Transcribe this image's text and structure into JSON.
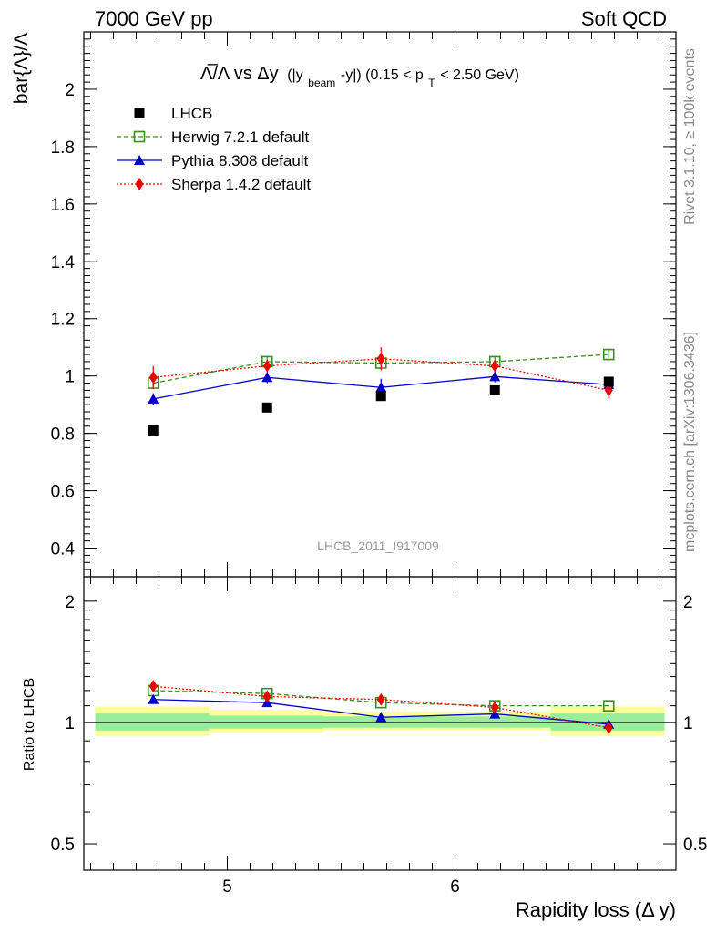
{
  "header": {
    "left": "7000 GeV pp",
    "right": "Soft QCD"
  },
  "side": {
    "top": "Rivet 3.1.10, ≥ 100k events",
    "bottom": "mcplots.cern.ch [arXiv:1306.3436]"
  },
  "chart_data": [
    {
      "type": "line",
      "title_main": "Λ̅/Λ vs Δy",
      "title_detail": "(|y",
      "title_sub1": "beam",
      "title_detail2": "-y|) (0.15 < p",
      "title_sub2": "T",
      "title_detail3": " < 2.50 GeV)",
      "ylabel": "bar{Λ}/Λ",
      "watermark": "LHCB_2011_I917009",
      "x": [
        4.675,
        5.175,
        5.675,
        6.175,
        6.675
      ],
      "xlim": [
        4.37,
        6.97
      ],
      "ylim": [
        0.3,
        2.2
      ],
      "yticks": [
        "0.4",
        "0.6",
        "0.8",
        "1",
        "1.2",
        "1.4",
        "1.6",
        "1.8",
        "2"
      ],
      "legend": [
        {
          "label": "LHCB",
          "color": "#000000",
          "marker": "square",
          "style": "none"
        },
        {
          "label": "Herwig 7.2.1 default",
          "color": "#3a8f1c",
          "marker": "open-square",
          "style": "dashed"
        },
        {
          "label": "Pythia 8.308 default",
          "color": "#0000cc",
          "marker": "triangle",
          "style": "solid"
        },
        {
          "label": "Sherpa 1.4.2 default",
          "color": "#ee0000",
          "marker": "diamond",
          "style": "dotted"
        }
      ],
      "series": [
        {
          "name": "LHCB",
          "values": [
            0.81,
            0.89,
            0.93,
            0.95,
            0.98
          ],
          "errors": [
            0.01,
            0.01,
            0.01,
            0.01,
            0.01
          ]
        },
        {
          "name": "Herwig 7.2.1 default",
          "values": [
            0.975,
            1.05,
            1.045,
            1.05,
            1.075
          ],
          "errors": [
            0.02,
            0.02,
            0.02,
            0.02,
            0.02
          ]
        },
        {
          "name": "Pythia 8.308 default",
          "values": [
            0.92,
            0.995,
            0.96,
            0.998,
            0.97
          ],
          "errors": [
            0.02,
            0.02,
            0.03,
            0.02,
            0.02
          ]
        },
        {
          "name": "Sherpa 1.4.2 default",
          "values": [
            0.995,
            1.035,
            1.06,
            1.035,
            0.95
          ],
          "errors": [
            0.04,
            0.02,
            0.04,
            0.02,
            0.03
          ]
        }
      ]
    },
    {
      "type": "line",
      "ylabel": "Ratio to LHCB",
      "xlabel": "Rapidity loss (Δ y)",
      "xticks": [
        "5",
        "6"
      ],
      "yticks": [
        "0.5",
        "1",
        "2"
      ],
      "ylim": [
        0.43,
        2.3
      ],
      "log_y": true,
      "bands": [
        {
          "x": [
            4.42,
            4.92
          ],
          "inner": [
            0.955,
            1.055
          ],
          "outer": [
            0.925,
            1.095
          ]
        },
        {
          "x": [
            4.92,
            5.42
          ],
          "inner": [
            0.965,
            1.04
          ],
          "outer": [
            0.945,
            1.075
          ]
        },
        {
          "x": [
            5.42,
            5.92
          ],
          "inner": [
            0.97,
            1.035
          ],
          "outer": [
            0.955,
            1.065
          ]
        },
        {
          "x": [
            5.92,
            6.42
          ],
          "inner": [
            0.97,
            1.035
          ],
          "outer": [
            0.955,
            1.065
          ]
        },
        {
          "x": [
            6.42,
            6.92
          ],
          "inner": [
            0.955,
            1.055
          ],
          "outer": [
            0.925,
            1.095
          ]
        }
      ],
      "series": [
        {
          "name": "Herwig 7.2.1 default",
          "values": [
            1.2,
            1.18,
            1.12,
            1.1,
            1.1
          ]
        },
        {
          "name": "Pythia 8.308 default",
          "values": [
            1.14,
            1.12,
            1.03,
            1.05,
            0.99
          ]
        },
        {
          "name": "Sherpa 1.4.2 default",
          "values": [
            1.23,
            1.16,
            1.14,
            1.09,
            0.97
          ]
        }
      ]
    }
  ]
}
